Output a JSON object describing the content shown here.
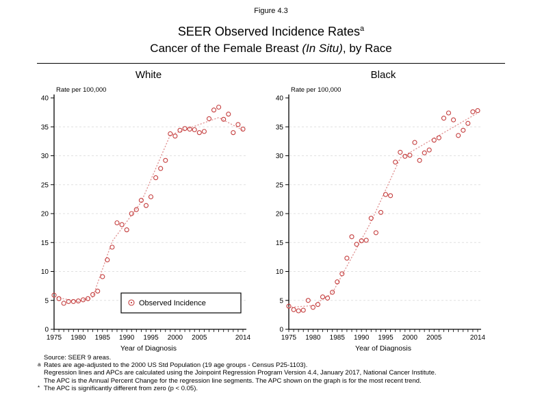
{
  "figure_label": "Figure 4.3",
  "title": {
    "main": "SEER Observed Incidence Rates",
    "superscript": "a"
  },
  "subtitle": {
    "prefix": "Cancer of the Female Breast ",
    "italic": "(In Situ)",
    "suffix": ", by Race"
  },
  "colors": {
    "marker": "#c43c3c",
    "trend": "#e29797",
    "grid": "#e0e0e0",
    "axis": "#000000",
    "text": "#000000"
  },
  "legend": {
    "label": "Observed Incidence",
    "position": "inside-lower-center-left-panel"
  },
  "chart_data": [
    {
      "type": "scatter",
      "title": "White",
      "ylabel": "Rate per 100,000",
      "xlabel": "Year of Diagnosis",
      "xlim": [
        1975,
        2014
      ],
      "ylim": [
        0,
        40
      ],
      "y_ticks": [
        0,
        5,
        10,
        15,
        20,
        25,
        30,
        35,
        40
      ],
      "x_ticks_labeled": [
        1975,
        1980,
        1985,
        1990,
        1995,
        2000,
        2005,
        2014
      ],
      "x_minor_tick_every": 1,
      "grid": "horizontal-dashed",
      "show_legend": true,
      "series": [
        {
          "name": "Observed Incidence",
          "marker": "open-circle",
          "x": [
            1975,
            1976,
            1977,
            1978,
            1979,
            1980,
            1981,
            1982,
            1983,
            1984,
            1985,
            1986,
            1987,
            1988,
            1989,
            1990,
            1991,
            1992,
            1993,
            1994,
            1995,
            1996,
            1997,
            1998,
            1999,
            2000,
            2001,
            2002,
            2003,
            2004,
            2005,
            2006,
            2007,
            2008,
            2009,
            2010,
            2011,
            2012,
            2013,
            2014
          ],
          "y": [
            5.9,
            5.3,
            4.5,
            4.8,
            4.8,
            4.9,
            5.1,
            5.3,
            6.0,
            6.6,
            9.1,
            12.0,
            14.2,
            18.4,
            18.1,
            17.2,
            20.0,
            20.7,
            22.3,
            21.4,
            22.9,
            26.2,
            27.8,
            29.2,
            33.8,
            33.4,
            34.4,
            34.7,
            34.6,
            34.5,
            34.0,
            34.2,
            36.4,
            37.9,
            38.4,
            36.3,
            37.2,
            34.0,
            35.4,
            34.6
          ]
        }
      ],
      "trend": {
        "name": "joinpoint-regression-line",
        "style": "dotted",
        "points": [
          [
            1975,
            5.6
          ],
          [
            1980,
            4.8
          ],
          [
            1983,
            5.6
          ],
          [
            1987,
            15.2
          ],
          [
            1993,
            22.0
          ],
          [
            1999,
            33.6
          ],
          [
            2009,
            36.6
          ],
          [
            2014,
            34.4
          ]
        ]
      }
    },
    {
      "type": "scatter",
      "title": "Black",
      "ylabel": "Rate per 100,000",
      "xlabel": "Year of Diagnosis",
      "xlim": [
        1975,
        2014
      ],
      "ylim": [
        0,
        40
      ],
      "y_ticks": [
        0,
        5,
        10,
        15,
        20,
        25,
        30,
        35,
        40
      ],
      "x_ticks_labeled": [
        1975,
        1980,
        1985,
        1990,
        1995,
        2000,
        2005,
        2014
      ],
      "x_minor_tick_every": 1,
      "grid": "horizontal-dashed",
      "show_legend": false,
      "series": [
        {
          "name": "Observed Incidence",
          "marker": "open-circle",
          "x": [
            1975,
            1976,
            1977,
            1978,
            1979,
            1980,
            1981,
            1982,
            1983,
            1984,
            1985,
            1986,
            1987,
            1988,
            1989,
            1990,
            1991,
            1992,
            1993,
            1994,
            1995,
            1996,
            1997,
            1998,
            1999,
            2000,
            2001,
            2002,
            2003,
            2004,
            2005,
            2006,
            2007,
            2008,
            2009,
            2010,
            2011,
            2012,
            2013,
            2014
          ],
          "y": [
            4.0,
            3.4,
            3.2,
            3.3,
            5.0,
            3.8,
            4.3,
            5.6,
            5.4,
            6.4,
            8.2,
            9.6,
            12.3,
            16.0,
            14.7,
            15.3,
            15.4,
            19.2,
            16.7,
            20.2,
            23.3,
            23.1,
            28.9,
            30.6,
            29.9,
            30.1,
            32.3,
            29.2,
            30.5,
            31.0,
            32.7,
            33.1,
            36.5,
            37.4,
            36.2,
            33.5,
            34.4,
            35.6,
            37.6,
            37.8
          ]
        }
      ],
      "trend": {
        "name": "joinpoint-regression-line",
        "style": "dotted",
        "points": [
          [
            1975,
            3.8
          ],
          [
            1980,
            4.1
          ],
          [
            1984,
            6.3
          ],
          [
            1992,
            18.6
          ],
          [
            1998,
            29.6
          ],
          [
            2014,
            37.4
          ]
        ]
      }
    }
  ],
  "footnotes": [
    {
      "marker": "",
      "text": "Source: SEER 9 areas."
    },
    {
      "marker": "a",
      "text": "Rates are age-adjusted to the 2000 US Std Population (19 age groups - Census P25-1103)."
    },
    {
      "marker": "",
      "text": "Regression lines and APCs are calculated using the Joinpoint Regression Program Version 4.4, January 2017, National Cancer Institute."
    },
    {
      "marker": "",
      "text": "The APC is the Annual Percent Change for the regression line segments. The APC shown on the graph is for the most recent trend."
    },
    {
      "marker": "*",
      "text": "The APC is significantly different from zero (p < 0.05)."
    }
  ]
}
